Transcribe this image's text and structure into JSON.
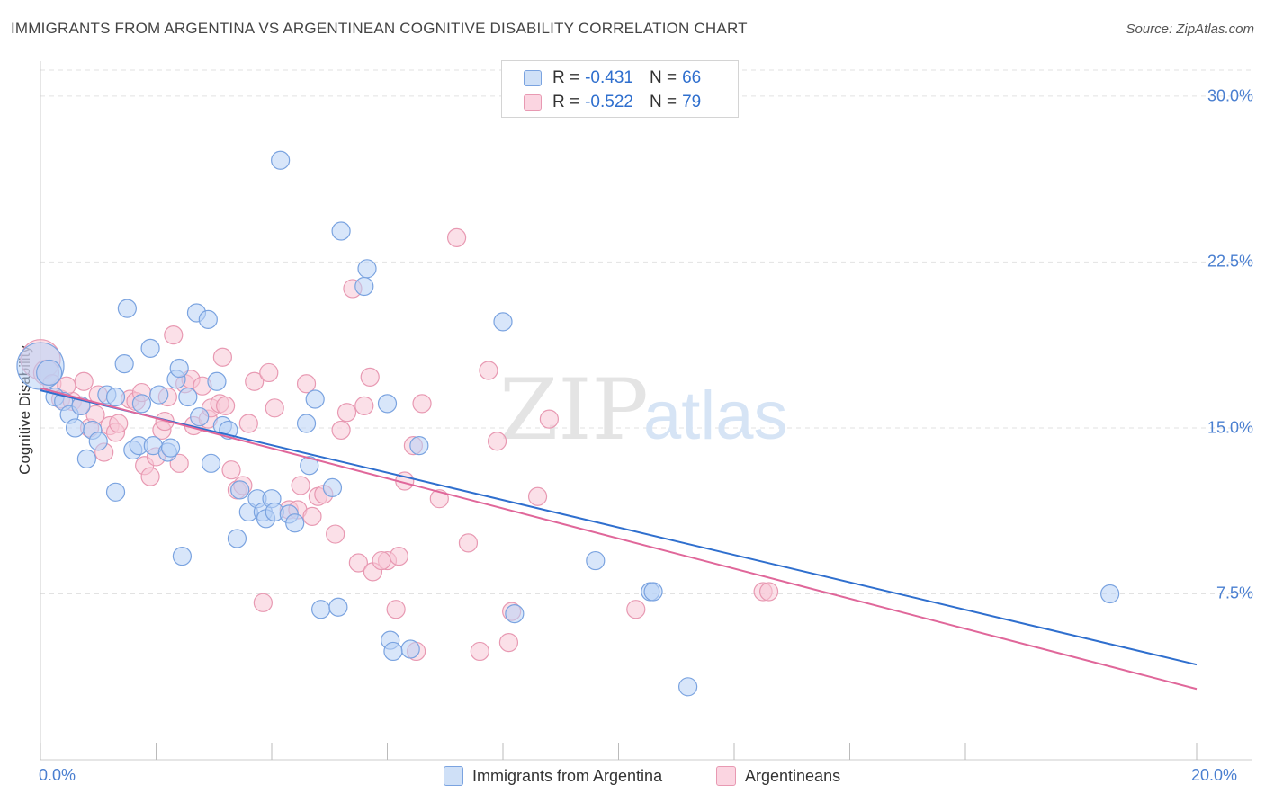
{
  "header": {
    "title": "IMMIGRANTS FROM ARGENTINA VS ARGENTINEAN COGNITIVE DISABILITY CORRELATION CHART",
    "source": "Source: ZipAtlas.com"
  },
  "watermark": {
    "zip": "ZIP",
    "atlas": "atlas"
  },
  "stats": [
    {
      "r_label": "R =",
      "r_value": "-0.431",
      "n_label": "N =",
      "n_value": "66",
      "color": "#a8c8f0"
    },
    {
      "r_label": "R =",
      "r_value": "-0.522",
      "n_label": "N =",
      "n_value": "79",
      "color": "#f5b8cb"
    }
  ],
  "colors": {
    "blue_fill": "#b8d2f5",
    "blue_stroke": "#7aa3e0",
    "blue_line": "#2f6fce",
    "pink_fill": "#f8c6d5",
    "pink_stroke": "#e899b2",
    "pink_line": "#e0679a",
    "tick_text": "#4a7fd0",
    "grid": "#e2e2e2"
  },
  "chart_data": {
    "type": "scatter",
    "title": "IMMIGRANTS FROM ARGENTINA VS ARGENTINEAN COGNITIVE DISABILITY CORRELATION CHART",
    "xlabel": "",
    "ylabel": "Cognitive Disability",
    "xlim": [
      0,
      20
    ],
    "ylim": [
      0,
      31.5
    ],
    "x_ticks": [
      "0.0%",
      "20.0%"
    ],
    "y_ticks": [
      {
        "value": 30.0,
        "label": "30.0%"
      },
      {
        "value": 22.5,
        "label": "22.5%"
      },
      {
        "value": 15.0,
        "label": "15.0%"
      },
      {
        "value": 7.5,
        "label": "7.5%"
      }
    ],
    "grid": true,
    "legend_position": "bottom",
    "series": [
      {
        "name": "Immigrants from Argentina",
        "color": "#b8d2f5",
        "trend": {
          "x": [
            0,
            20
          ],
          "y": [
            16.7,
            4.3
          ]
        },
        "points": [
          [
            0.0,
            17.8,
            26
          ],
          [
            0.15,
            17.5,
            14
          ],
          [
            0.25,
            16.4,
            10
          ],
          [
            0.4,
            16.2,
            10
          ],
          [
            0.5,
            15.6,
            10
          ],
          [
            0.6,
            15.0,
            10
          ],
          [
            0.7,
            16.0,
            10
          ],
          [
            0.8,
            13.6,
            10
          ],
          [
            0.9,
            14.9,
            10
          ],
          [
            1.0,
            14.4,
            10
          ],
          [
            1.15,
            16.5,
            10
          ],
          [
            1.3,
            16.4,
            10
          ],
          [
            1.3,
            12.1,
            10
          ],
          [
            1.45,
            17.9,
            10
          ],
          [
            1.5,
            20.4,
            10
          ],
          [
            1.6,
            14.0,
            10
          ],
          [
            1.7,
            14.2,
            10
          ],
          [
            1.75,
            16.1,
            10
          ],
          [
            1.9,
            18.6,
            10
          ],
          [
            1.95,
            14.2,
            10
          ],
          [
            2.05,
            16.5,
            10
          ],
          [
            2.2,
            13.9,
            10
          ],
          [
            2.25,
            14.1,
            10
          ],
          [
            2.35,
            17.2,
            10
          ],
          [
            2.4,
            17.7,
            10
          ],
          [
            2.45,
            9.2,
            10
          ],
          [
            2.55,
            16.4,
            10
          ],
          [
            2.7,
            20.2,
            10
          ],
          [
            2.75,
            15.5,
            10
          ],
          [
            2.9,
            19.9,
            10
          ],
          [
            2.95,
            13.4,
            10
          ],
          [
            3.05,
            17.1,
            10
          ],
          [
            3.15,
            15.1,
            10
          ],
          [
            3.25,
            14.9,
            10
          ],
          [
            3.4,
            10.0,
            10
          ],
          [
            3.45,
            12.2,
            10
          ],
          [
            3.6,
            11.2,
            10
          ],
          [
            3.75,
            11.8,
            10
          ],
          [
            3.85,
            11.2,
            10
          ],
          [
            3.9,
            10.9,
            10
          ],
          [
            4.0,
            11.8,
            10
          ],
          [
            4.05,
            11.2,
            10
          ],
          [
            4.15,
            27.1,
            10
          ],
          [
            4.3,
            11.1,
            10
          ],
          [
            4.4,
            10.7,
            10
          ],
          [
            4.6,
            15.2,
            10
          ],
          [
            4.65,
            13.3,
            10
          ],
          [
            4.75,
            16.3,
            10
          ],
          [
            4.85,
            6.8,
            10
          ],
          [
            5.05,
            12.3,
            10
          ],
          [
            5.15,
            6.9,
            10
          ],
          [
            5.2,
            23.9,
            10
          ],
          [
            5.6,
            21.4,
            10
          ],
          [
            5.65,
            22.2,
            10
          ],
          [
            6.0,
            16.1,
            10
          ],
          [
            6.05,
            5.4,
            10
          ],
          [
            6.4,
            5.0,
            10
          ],
          [
            6.55,
            14.2,
            10
          ],
          [
            8.0,
            19.8,
            10
          ],
          [
            8.2,
            6.6,
            10
          ],
          [
            9.6,
            9.0,
            10
          ],
          [
            10.55,
            7.6,
            10
          ],
          [
            10.6,
            7.6,
            10
          ],
          [
            11.2,
            3.3,
            10
          ],
          [
            18.5,
            7.5,
            10
          ],
          [
            6.1,
            4.9,
            10
          ]
        ]
      },
      {
        "name": "Argentineans",
        "color": "#f8c6d5",
        "trend": {
          "x": [
            0,
            20
          ],
          "y": [
            16.8,
            3.2
          ]
        },
        "points": [
          [
            0.0,
            18.1,
            22
          ],
          [
            0.1,
            17.5,
            14
          ],
          [
            0.2,
            17.0,
            10
          ],
          [
            0.35,
            16.3,
            10
          ],
          [
            0.55,
            16.2,
            10
          ],
          [
            0.7,
            16.0,
            10
          ],
          [
            0.75,
            17.1,
            10
          ],
          [
            0.85,
            15.0,
            10
          ],
          [
            0.95,
            15.6,
            10
          ],
          [
            1.1,
            13.9,
            10
          ],
          [
            1.2,
            15.1,
            10
          ],
          [
            1.3,
            14.8,
            10
          ],
          [
            1.35,
            15.2,
            10
          ],
          [
            1.55,
            16.3,
            10
          ],
          [
            1.65,
            16.2,
            10
          ],
          [
            1.75,
            16.6,
            10
          ],
          [
            1.8,
            13.3,
            10
          ],
          [
            1.9,
            12.8,
            10
          ],
          [
            2.0,
            13.7,
            10
          ],
          [
            2.1,
            14.9,
            10
          ],
          [
            2.15,
            15.3,
            10
          ],
          [
            2.3,
            19.2,
            10
          ],
          [
            2.4,
            13.4,
            10
          ],
          [
            2.5,
            17.0,
            10
          ],
          [
            2.6,
            17.2,
            10
          ],
          [
            2.65,
            15.1,
            10
          ],
          [
            2.8,
            16.9,
            10
          ],
          [
            2.9,
            15.4,
            10
          ],
          [
            2.95,
            15.9,
            10
          ],
          [
            3.1,
            16.1,
            10
          ],
          [
            3.15,
            18.2,
            10
          ],
          [
            3.3,
            13.1,
            10
          ],
          [
            3.4,
            12.2,
            10
          ],
          [
            3.5,
            12.4,
            10
          ],
          [
            3.6,
            15.2,
            10
          ],
          [
            3.7,
            17.1,
            10
          ],
          [
            3.85,
            7.1,
            10
          ],
          [
            3.95,
            17.5,
            10
          ],
          [
            4.05,
            15.9,
            10
          ],
          [
            4.3,
            11.3,
            10
          ],
          [
            4.45,
            11.3,
            10
          ],
          [
            4.5,
            12.4,
            10
          ],
          [
            4.6,
            17.0,
            10
          ],
          [
            4.7,
            11.0,
            10
          ],
          [
            4.8,
            11.9,
            10
          ],
          [
            5.1,
            10.2,
            10
          ],
          [
            5.3,
            15.7,
            10
          ],
          [
            5.4,
            21.3,
            10
          ],
          [
            5.5,
            8.9,
            10
          ],
          [
            5.6,
            16.0,
            10
          ],
          [
            5.7,
            17.3,
            10
          ],
          [
            5.75,
            8.5,
            10
          ],
          [
            6.0,
            9.0,
            10
          ],
          [
            6.15,
            6.8,
            10
          ],
          [
            6.2,
            9.2,
            10
          ],
          [
            6.3,
            12.6,
            10
          ],
          [
            6.45,
            14.2,
            10
          ],
          [
            6.6,
            16.1,
            10
          ],
          [
            6.9,
            11.8,
            10
          ],
          [
            7.2,
            23.6,
            10
          ],
          [
            7.4,
            9.8,
            10
          ],
          [
            7.6,
            4.9,
            10
          ],
          [
            7.75,
            17.6,
            10
          ],
          [
            7.9,
            14.4,
            10
          ],
          [
            8.1,
            5.3,
            10
          ],
          [
            8.6,
            11.9,
            10
          ],
          [
            8.8,
            15.4,
            10
          ],
          [
            10.3,
            6.8,
            10
          ],
          [
            12.5,
            7.6,
            10
          ],
          [
            12.6,
            7.6,
            10
          ],
          [
            5.2,
            14.9,
            10
          ],
          [
            1.0,
            16.5,
            10
          ],
          [
            2.2,
            16.4,
            10
          ],
          [
            4.9,
            12.0,
            10
          ],
          [
            3.2,
            16.0,
            10
          ],
          [
            0.45,
            16.9,
            10
          ],
          [
            6.5,
            4.9,
            10
          ],
          [
            8.15,
            6.7,
            10
          ],
          [
            5.9,
            9.0,
            10
          ]
        ]
      }
    ]
  }
}
